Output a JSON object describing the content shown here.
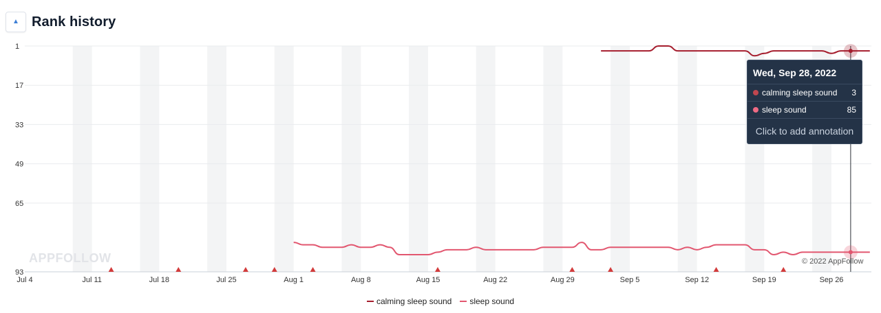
{
  "header": {
    "title": "Rank history",
    "collapse_icon": "caret-up-icon"
  },
  "watermark": "APPFOLLOW",
  "copyright": "© 2022 AppFollow",
  "tooltip": {
    "date": "Wed, Sep 28, 2022",
    "rows": [
      {
        "name": "calming sleep sound",
        "value": "3",
        "color": "#c0464f"
      },
      {
        "name": "sleep sound",
        "value": "85",
        "color": "#ef6b84"
      }
    ],
    "hint": "Click to add annotation"
  },
  "legend": [
    {
      "name": "calming sleep sound",
      "color": "#a51d2d"
    },
    {
      "name": "sleep sound",
      "color": "#e2566f"
    }
  ],
  "chart_data": {
    "type": "line",
    "title": "Rank history",
    "y_reversed": true,
    "ylim": [
      1,
      93
    ],
    "y_ticks": [
      "1",
      "17",
      "33",
      "49",
      "65",
      "93"
    ],
    "x_range": [
      "Jul 4",
      "Sep 29"
    ],
    "x_ticks": [
      "Jul 4",
      "Jul 11",
      "Jul 18",
      "Jul 25",
      "Aug 1",
      "Aug 8",
      "Aug 15",
      "Aug 22",
      "Aug 29",
      "Sep 5",
      "Sep 12",
      "Sep 19",
      "Sep 26"
    ],
    "weekend_bands": true,
    "grid": true,
    "legend_position": "bottom-center",
    "annotations_markers": [
      "Jul 13",
      "Jul 20",
      "Jul 27",
      "Jul 30",
      "Aug 3",
      "Aug 16",
      "Aug 30",
      "Sep 3",
      "Sep 14",
      "Sep 21"
    ],
    "series": [
      {
        "name": "calming sleep sound",
        "color": "#a51d2d",
        "points": [
          [
            "Sep 2",
            3
          ],
          [
            "Sep 3",
            3
          ],
          [
            "Sep 4",
            3
          ],
          [
            "Sep 5",
            3
          ],
          [
            "Sep 6",
            3
          ],
          [
            "Sep 7",
            3
          ],
          [
            "Sep 8",
            1
          ],
          [
            "Sep 9",
            1
          ],
          [
            "Sep 10",
            3
          ],
          [
            "Sep 11",
            3
          ],
          [
            "Sep 12",
            3
          ],
          [
            "Sep 13",
            3
          ],
          [
            "Sep 14",
            3
          ],
          [
            "Sep 15",
            3
          ],
          [
            "Sep 16",
            3
          ],
          [
            "Sep 17",
            3
          ],
          [
            "Sep 18",
            5
          ],
          [
            "Sep 19",
            4
          ],
          [
            "Sep 20",
            3
          ],
          [
            "Sep 21",
            3
          ],
          [
            "Sep 22",
            3
          ],
          [
            "Sep 23",
            3
          ],
          [
            "Sep 24",
            3
          ],
          [
            "Sep 25",
            3
          ],
          [
            "Sep 26",
            4
          ],
          [
            "Sep 27",
            3
          ],
          [
            "Sep 28",
            3
          ],
          [
            "Sep 29",
            3
          ],
          [
            "Sep 30",
            3
          ]
        ]
      },
      {
        "name": "sleep sound",
        "color": "#e2566f",
        "points": [
          [
            "Aug 1",
            81
          ],
          [
            "Aug 2",
            82
          ],
          [
            "Aug 3",
            82
          ],
          [
            "Aug 4",
            83
          ],
          [
            "Aug 5",
            83
          ],
          [
            "Aug 6",
            83
          ],
          [
            "Aug 7",
            82
          ],
          [
            "Aug 8",
            83
          ],
          [
            "Aug 9",
            83
          ],
          [
            "Aug 10",
            82
          ],
          [
            "Aug 11",
            83
          ],
          [
            "Aug 12",
            86
          ],
          [
            "Aug 13",
            86
          ],
          [
            "Aug 14",
            86
          ],
          [
            "Aug 15",
            86
          ],
          [
            "Aug 16",
            85
          ],
          [
            "Aug 17",
            84
          ],
          [
            "Aug 18",
            84
          ],
          [
            "Aug 19",
            84
          ],
          [
            "Aug 20",
            83
          ],
          [
            "Aug 21",
            84
          ],
          [
            "Aug 22",
            84
          ],
          [
            "Aug 23",
            84
          ],
          [
            "Aug 24",
            84
          ],
          [
            "Aug 25",
            84
          ],
          [
            "Aug 26",
            84
          ],
          [
            "Aug 27",
            83
          ],
          [
            "Aug 28",
            83
          ],
          [
            "Aug 29",
            83
          ],
          [
            "Aug 30",
            83
          ],
          [
            "Aug 31",
            81
          ],
          [
            "Sep 1",
            84
          ],
          [
            "Sep 2",
            84
          ],
          [
            "Sep 3",
            83
          ],
          [
            "Sep 4",
            83
          ],
          [
            "Sep 5",
            83
          ],
          [
            "Sep 6",
            83
          ],
          [
            "Sep 7",
            83
          ],
          [
            "Sep 8",
            83
          ],
          [
            "Sep 9",
            83
          ],
          [
            "Sep 10",
            84
          ],
          [
            "Sep 11",
            83
          ],
          [
            "Sep 12",
            84
          ],
          [
            "Sep 13",
            83
          ],
          [
            "Sep 14",
            82
          ],
          [
            "Sep 15",
            82
          ],
          [
            "Sep 16",
            82
          ],
          [
            "Sep 17",
            82
          ],
          [
            "Sep 18",
            84
          ],
          [
            "Sep 19",
            84
          ],
          [
            "Sep 20",
            86
          ],
          [
            "Sep 21",
            85
          ],
          [
            "Sep 22",
            86
          ],
          [
            "Sep 23",
            85
          ],
          [
            "Sep 24",
            85
          ],
          [
            "Sep 25",
            85
          ],
          [
            "Sep 26",
            85
          ],
          [
            "Sep 27",
            85
          ],
          [
            "Sep 28",
            85
          ],
          [
            "Sep 29",
            85
          ],
          [
            "Sep 30",
            85
          ]
        ]
      }
    ],
    "highlighted_date": "Sep 28"
  }
}
